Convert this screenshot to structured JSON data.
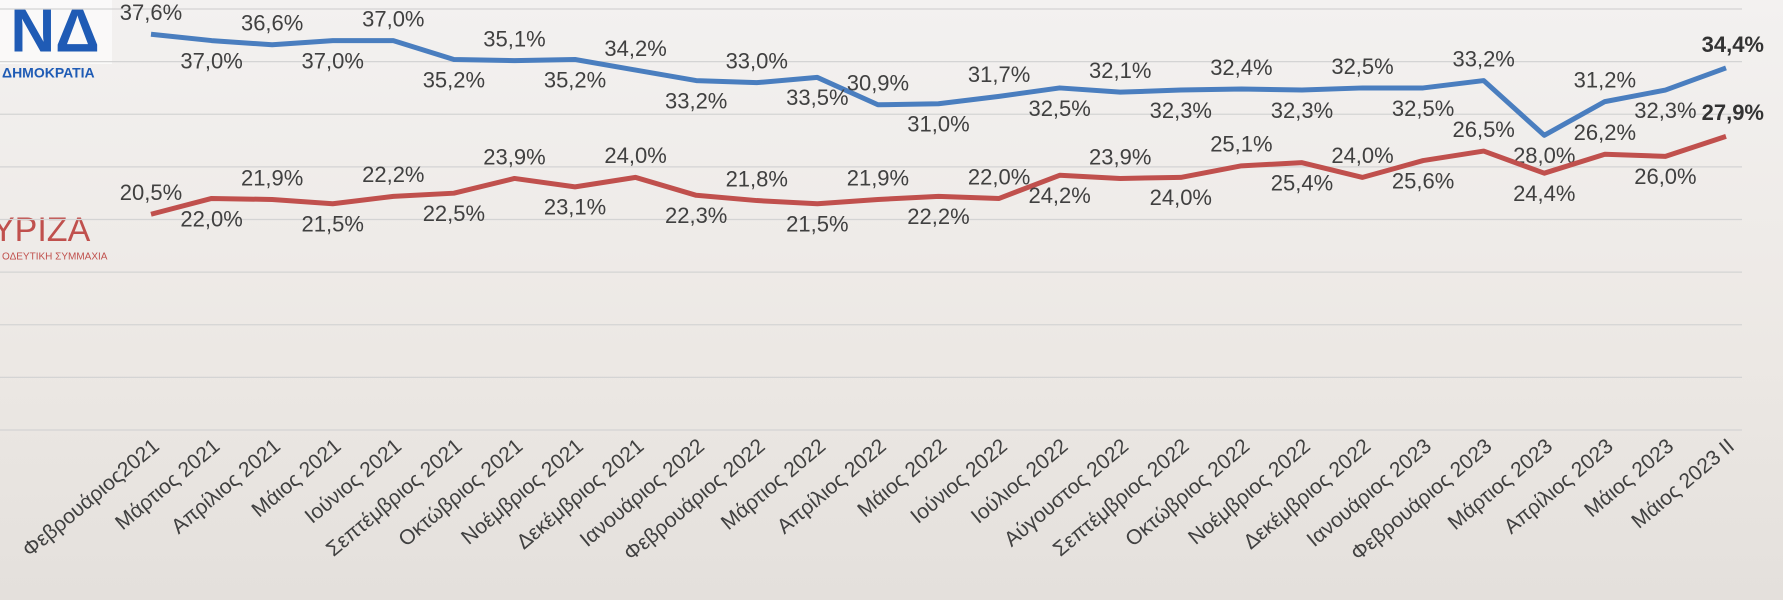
{
  "chart_data": {
    "type": "line",
    "categories": [
      "Φεβρουάριος2021",
      "Μάρτιος 2021",
      "Απρίλιος 2021",
      "Μάιος 2021",
      "Ιούνιος 2021",
      "Σεπτέμβριος 2021",
      "Οκτώβριος 2021",
      "Νοέμβριος 2021",
      "Δεκέμβριος 2021",
      "Ιανουάριος 2022",
      "Φεβρουάριος 2022",
      "Μάρτιος 2022",
      "Απρίλιος 2022",
      "Μάιος 2022",
      "Ιούνιος 2022",
      "Ιούλιος 2022",
      "Αύγουστος 2022",
      "Σεπτέμβριος 2022",
      "Οκτώβριος 2022",
      "Νοέμβριος 2022",
      "Δεκέμβριος 2022",
      "Ιανουάριος 2023",
      "Φεβρουάριος 2023",
      "Μάρτιος 2023",
      "Απρίλιος 2023",
      "Μάιος 2023",
      "Μάιος 2023 ΙΙ"
    ],
    "series": [
      {
        "name": "ΔΗΜΟΚΡΑΤΙΑ",
        "color": "#4a7ebf",
        "values": [
          37.6,
          37.0,
          36.6,
          37.0,
          37.0,
          35.2,
          35.1,
          35.2,
          34.2,
          33.2,
          33.0,
          33.5,
          30.9,
          31.0,
          31.7,
          32.5,
          32.1,
          32.3,
          32.4,
          32.3,
          32.5,
          32.5,
          33.2,
          28.0,
          31.2,
          32.3,
          34.4
        ],
        "value_labels": [
          "37,6%",
          "37,0%",
          "36,6%",
          "37,0%",
          "37,0%",
          "35,2%",
          "35,1%",
          "35,2%",
          "34,2%",
          "33,2%",
          "33,0%",
          "33,5%",
          "30,9%",
          "31,0%",
          "31,7%",
          "32,5%",
          "32,1%",
          "32,3%",
          "32,4%",
          "32,3%",
          "32,5%",
          "32,5%",
          "33,2%",
          "28,0%",
          "31,2%",
          "32,3%",
          "34,4%"
        ]
      },
      {
        "name": "ΥΡΙΖΑ",
        "color": "#c0504d",
        "values": [
          20.5,
          22.0,
          21.9,
          21.5,
          22.2,
          22.5,
          23.9,
          23.1,
          24.0,
          22.3,
          21.8,
          21.5,
          21.9,
          22.2,
          22.0,
          24.2,
          23.9,
          24.0,
          25.1,
          25.4,
          24.0,
          25.6,
          26.5,
          24.4,
          26.2,
          26.0,
          27.9
        ],
        "value_labels": [
          "20,5%",
          "22,0%",
          "21,9%",
          "21,5%",
          "22,2%",
          "22,5%",
          "23,9%",
          "23,1%",
          "24,0%",
          "22,3%",
          "21,8%",
          "21,5%",
          "21,9%",
          "22,2%",
          "22,0%",
          "24,2%",
          "23,9%",
          "24,0%",
          "25,1%",
          "25,4%",
          "24,0%",
          "25,6%",
          "26,5%",
          "24,4%",
          "26,2%",
          "26,0%",
          "27,9%"
        ]
      }
    ],
    "annotations": [
      "ΝΔ",
      "ΟΔΕΥΤΙΚΗ ΣΥΜΜΑΧΙΑ"
    ],
    "ylim": [
      0,
      40
    ],
    "yticks": [
      0,
      5,
      10,
      15,
      20,
      25,
      30,
      35,
      40
    ],
    "grid": true
  }
}
